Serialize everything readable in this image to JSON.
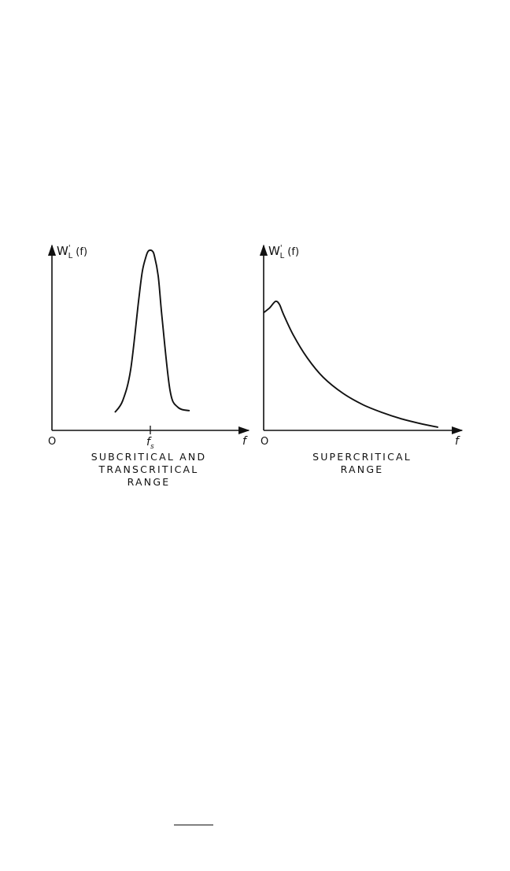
{
  "chart_data": [
    {
      "type": "line",
      "ylabel": "W'L (f)",
      "ylabel_parts": {
        "base": "W",
        "prime": "'",
        "sub": "L",
        "arg": " (f)"
      },
      "xlabel": "f",
      "origin_label": "O",
      "x_tick_label": {
        "base": "f",
        "sub": "s"
      },
      "caption": [
        "SUBCRITICAL AND",
        "TRANSCRITICAL",
        "RANGE"
      ],
      "grid": false,
      "xlim": [
        0,
        1
      ],
      "ylim": [
        0,
        1
      ],
      "x": [
        0.32,
        0.36,
        0.4,
        0.44,
        0.46,
        0.48,
        0.49,
        0.5,
        0.51,
        0.52,
        0.54,
        0.56,
        0.6,
        0.64,
        0.7
      ],
      "y": [
        0.05,
        0.12,
        0.3,
        0.7,
        0.88,
        0.97,
        0.995,
        1.0,
        0.995,
        0.97,
        0.85,
        0.6,
        0.18,
        0.08,
        0.06
      ]
    },
    {
      "type": "line",
      "ylabel": "W'L (f)",
      "ylabel_parts": {
        "base": "W",
        "prime": "'",
        "sub": "L",
        "arg": " (f)"
      },
      "xlabel": "f",
      "origin_label": "O",
      "caption": [
        "SUPERCRITICAL",
        "RANGE"
      ],
      "grid": false,
      "xlim": [
        0,
        1
      ],
      "ylim": [
        0,
        1
      ],
      "x": [
        0.0,
        0.03,
        0.06,
        0.08,
        0.1,
        0.15,
        0.22,
        0.3,
        0.4,
        0.5,
        0.6,
        0.7,
        0.8,
        0.88
      ],
      "y": [
        0.72,
        0.75,
        0.79,
        0.77,
        0.71,
        0.58,
        0.44,
        0.32,
        0.22,
        0.15,
        0.1,
        0.06,
        0.03,
        0.01
      ]
    }
  ]
}
